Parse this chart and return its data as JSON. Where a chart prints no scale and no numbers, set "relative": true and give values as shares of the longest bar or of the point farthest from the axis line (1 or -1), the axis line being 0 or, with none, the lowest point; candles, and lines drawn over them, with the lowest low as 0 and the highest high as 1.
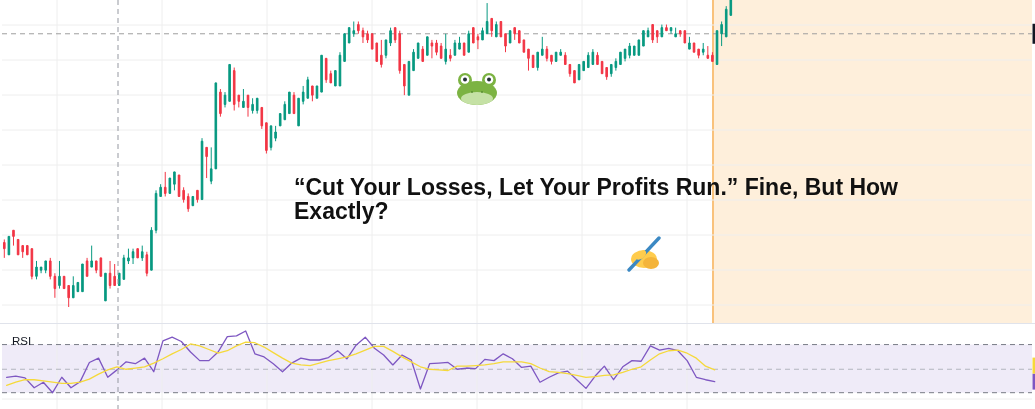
{
  "chart_data": [
    {
      "type": "candlestick",
      "title": "“Cut Your Losses, Let Your Profits Run.” Fine, But How Exactly?",
      "relative": true,
      "grid": true,
      "categories": [
        null,
        null,
        null,
        null,
        null,
        null,
        null,
        null,
        null,
        null,
        null,
        null,
        null,
        null,
        null,
        null,
        null,
        null,
        null,
        null,
        null,
        null,
        null,
        null,
        null,
        null,
        null,
        null,
        null,
        null,
        null,
        null,
        null,
        null,
        null,
        null,
        null,
        null,
        null,
        null,
        null,
        null,
        null,
        null,
        null,
        null,
        null,
        null,
        null,
        null,
        null,
        null,
        null,
        null,
        null,
        null,
        null,
        null,
        null,
        null,
        null,
        null,
        null,
        null,
        null,
        null,
        null,
        null,
        null,
        null,
        null,
        null,
        null,
        null,
        null,
        null,
        null,
        null,
        null,
        null,
        null,
        null,
        null,
        null,
        null,
        null,
        null,
        null,
        null,
        null,
        null,
        null,
        null,
        null,
        null,
        null,
        null,
        null,
        null,
        null,
        null,
        null,
        null,
        null,
        null,
        null,
        null,
        null,
        null,
        null,
        null,
        null,
        null,
        null,
        null,
        null,
        null,
        null,
        null,
        null,
        null,
        null,
        null,
        null,
        null,
        null,
        null,
        null,
        null,
        null,
        null,
        null,
        null,
        null,
        null,
        null,
        null,
        null,
        null,
        null,
        null,
        null,
        null,
        null,
        null,
        null,
        null,
        null,
        null,
        null,
        null,
        null,
        null,
        null,
        null,
        null,
        null,
        null,
        null,
        null,
        null,
        null,
        null,
        null,
        null,
        null,
        null,
        null,
        null,
        null,
        null,
        null,
        null,
        null,
        null,
        null,
        null,
        null,
        null,
        null,
        null,
        null,
        null,
        null,
        null,
        null,
        null,
        null,
        null,
        null,
        null,
        null,
        null,
        null,
        null,
        null,
        null,
        null,
        null,
        null,
        null,
        null,
        null,
        null,
        null,
        null,
        null,
        null,
        null,
        null,
        null,
        null,
        null,
        null,
        null,
        null,
        null,
        null,
        null,
        null,
        null,
        null,
        null,
        null
      ],
      "ohlc": [
        [
          0.21,
          0.22,
          0.16,
          0.19
        ],
        [
          0.17,
          0.23,
          0.17,
          0.23
        ],
        [
          0.25,
          0.25,
          0.2,
          0.23
        ],
        [
          0.22,
          0.22,
          0.17,
          0.17
        ],
        [
          0.2,
          0.2,
          0.16,
          0.18
        ],
        [
          0.2,
          0.2,
          0.17,
          0.17
        ],
        [
          0.19,
          0.19,
          0.09,
          0.1
        ],
        [
          0.1,
          0.15,
          0.09,
          0.13
        ],
        [
          0.12,
          0.13,
          0.11,
          0.13
        ],
        [
          0.12,
          0.15,
          0.11,
          0.15
        ],
        [
          0.15,
          0.16,
          0.09,
          0.1
        ],
        [
          0.1,
          0.11,
          0.03,
          0.06
        ],
        [
          0.07,
          0.15,
          0.06,
          0.1
        ],
        [
          0.1,
          0.1,
          0.06,
          0.06
        ],
        [
          0.07,
          0.07,
          0,
          0.03
        ],
        [
          0.03,
          0.1,
          0.03,
          0.07
        ],
        [
          0.05,
          0.08,
          0.05,
          0.08
        ],
        [
          0.05,
          0.14,
          0.05,
          0.14
        ],
        [
          0.15,
          0.16,
          0.1,
          0.1
        ],
        [
          0.13,
          0.2,
          0.13,
          0.15
        ],
        [
          0.15,
          0.15,
          0.11,
          0.12
        ],
        [
          0.16,
          0.16,
          0.1,
          0.1
        ],
        [
          0.02,
          0.11,
          0.02,
          0.11
        ],
        [
          0.11,
          0.15,
          0.06,
          0.07
        ],
        [
          0.1,
          0.14,
          0.07,
          0.07
        ],
        [
          0.07,
          0.11,
          0.07,
          0.11
        ],
        [
          0.09,
          0.17,
          0.09,
          0.16
        ],
        [
          0.15,
          0.19,
          0.14,
          0.16
        ],
        [
          0.16,
          0.19,
          0.14,
          0.18
        ],
        [
          0.19,
          0.19,
          0.16,
          0.16
        ],
        [
          0.16,
          0.2,
          0.15,
          0.18
        ],
        [
          0.17,
          0.18,
          0.1,
          0.11
        ],
        [
          0.12,
          0.26,
          0.12,
          0.25
        ],
        [
          0.25,
          0.38,
          0.24,
          0.37
        ],
        [
          0.36,
          0.4,
          0.36,
          0.39
        ],
        [
          0.39,
          0.44,
          0.36,
          0.37
        ],
        [
          0.37,
          0.42,
          0.37,
          0.42
        ],
        [
          0.4,
          0.44,
          0.38,
          0.44
        ],
        [
          0.43,
          0.43,
          0.36,
          0.36
        ],
        [
          0.38,
          0.39,
          0.34,
          0.35
        ],
        [
          0.36,
          0.37,
          0.31,
          0.32
        ],
        [
          0.33,
          0.36,
          0.33,
          0.36
        ],
        [
          0.38,
          0.38,
          0.34,
          0.35
        ],
        [
          0.35,
          0.55,
          0.35,
          0.54
        ],
        [
          0.52,
          0.52,
          0.42,
          0.49
        ],
        [
          0.41,
          0.52,
          0.4,
          0.45
        ],
        [
          0.45,
          0.73,
          0.45,
          0.73
        ],
        [
          0.7,
          0.71,
          0.62,
          0.63
        ],
        [
          0.66,
          0.7,
          0.65,
          0.69
        ],
        [
          0.67,
          0.79,
          0.67,
          0.79
        ],
        [
          0.77,
          0.78,
          0.64,
          0.66
        ],
        [
          0.69,
          0.69,
          0.65,
          0.67
        ],
        [
          0.65,
          0.71,
          0.65,
          0.67
        ],
        [
          0.69,
          0.69,
          0.62,
          0.65
        ],
        [
          0.64,
          0.68,
          0.63,
          0.66
        ],
        [
          0.64,
          0.68,
          0.63,
          0.68
        ],
        [
          0.65,
          0.65,
          0.58,
          0.59
        ],
        [
          0.6,
          0.6,
          0.5,
          0.51
        ],
        [
          0.52,
          0.59,
          0.51,
          0.59
        ],
        [
          0.55,
          0.59,
          0.54,
          0.57
        ],
        [
          0.59,
          0.63,
          0.59,
          0.63
        ],
        [
          0.61,
          0.67,
          0.61,
          0.66
        ],
        [
          0.63,
          0.7,
          0.63,
          0.7
        ],
        [
          0.69,
          0.7,
          0.63,
          0.63
        ],
        [
          0.59,
          0.68,
          0.59,
          0.68
        ],
        [
          0.67,
          0.72,
          0.66,
          0.7
        ],
        [
          0.68,
          0.75,
          0.68,
          0.74
        ],
        [
          0.72,
          0.72,
          0.67,
          0.69
        ],
        [
          0.68,
          0.72,
          0.68,
          0.72
        ],
        [
          0.7,
          0.82,
          0.7,
          0.82
        ],
        [
          0.81,
          0.81,
          0.73,
          0.74
        ],
        [
          0.76,
          0.77,
          0.73,
          0.73
        ],
        [
          0.72,
          0.77,
          0.72,
          0.77
        ],
        [
          0.72,
          0.83,
          0.72,
          0.82
        ],
        [
          0.8,
          0.89,
          0.8,
          0.89
        ],
        [
          0.86,
          0.91,
          0.86,
          0.91
        ],
        [
          0.89,
          0.93,
          0.88,
          0.9
        ],
        [
          0.92,
          0.93,
          0.89,
          0.9
        ],
        [
          0.9,
          0.91,
          0.86,
          0.88
        ],
        [
          0.89,
          0.9,
          0.86,
          0.87
        ],
        [
          0.89,
          0.89,
          0.84,
          0.84
        ],
        [
          0.86,
          0.86,
          0.8,
          0.8
        ],
        [
          0.82,
          0.87,
          0.78,
          0.79
        ],
        [
          0.82,
          0.87,
          0.81,
          0.87
        ],
        [
          0.86,
          0.91,
          0.85,
          0.9
        ],
        [
          0.91,
          0.91,
          0.86,
          0.87
        ],
        [
          0.89,
          0.9,
          0.76,
          0.77
        ],
        [
          0.79,
          0.79,
          0.69,
          0.72
        ],
        [
          0.69,
          0.8,
          0.69,
          0.8
        ],
        [
          0.77,
          0.84,
          0.77,
          0.83
        ],
        [
          0.81,
          0.86,
          0.81,
          0.86
        ],
        [
          0.84,
          0.85,
          0.8,
          0.8
        ],
        [
          0.82,
          0.88,
          0.82,
          0.88
        ],
        [
          0.86,
          0.87,
          0.81,
          0.85
        ],
        [
          0.86,
          0.87,
          0.82,
          0.83
        ],
        [
          0.85,
          0.86,
          0.81,
          0.81
        ],
        [
          0.8,
          0.89,
          0.79,
          0.84
        ],
        [
          0.82,
          0.84,
          0.8,
          0.81
        ],
        [
          0.82,
          0.87,
          0.82,
          0.86
        ],
        [
          0.84,
          0.88,
          0.84,
          0.86
        ],
        [
          0.86,
          0.86,
          0.82,
          0.82
        ],
        [
          0.83,
          0.9,
          0.83,
          0.89
        ],
        [
          0.91,
          0.91,
          0.86,
          0.86
        ],
        [
          0.88,
          0.89,
          0.84,
          0.87
        ],
        [
          0.87,
          0.91,
          0.87,
          0.9
        ],
        [
          0.89,
          0.99,
          0.89,
          0.93
        ],
        [
          0.94,
          0.94,
          0.88,
          0.9
        ],
        [
          0.88,
          0.93,
          0.88,
          0.92
        ],
        [
          0.93,
          0.93,
          0.88,
          0.88
        ],
        [
          0.89,
          0.89,
          0.83,
          0.85
        ],
        [
          0.86,
          0.9,
          0.86,
          0.9
        ],
        [
          0.91,
          0.91,
          0.87,
          0.89
        ],
        [
          0.9,
          0.9,
          0.86,
          0.86
        ],
        [
          0.87,
          0.87,
          0.83,
          0.83
        ],
        [
          0.84,
          0.84,
          0.77,
          0.81
        ],
        [
          0.82,
          0.82,
          0.78,
          0.78
        ],
        [
          0.78,
          0.83,
          0.77,
          0.83
        ],
        [
          0.82,
          0.88,
          0.82,
          0.84
        ],
        [
          0.84,
          0.85,
          0.8,
          0.81
        ],
        [
          0.82,
          0.82,
          0.79,
          0.8
        ],
        [
          0.8,
          0.83,
          0.8,
          0.83
        ],
        [
          0.82,
          0.84,
          0.82,
          0.83
        ],
        [
          0.82,
          0.83,
          0.79,
          0.79
        ],
        [
          0.79,
          0.79,
          0.75,
          0.76
        ],
        [
          0.77,
          0.77,
          0.73,
          0.73
        ],
        [
          0.74,
          0.79,
          0.74,
          0.79
        ],
        [
          0.77,
          0.8,
          0.77,
          0.8
        ],
        [
          0.78,
          0.83,
          0.78,
          0.82
        ],
        [
          0.79,
          0.84,
          0.79,
          0.83
        ],
        [
          0.82,
          0.83,
          0.79,
          0.79
        ],
        [
          0.8,
          0.8,
          0.76,
          0.76
        ],
        [
          0.78,
          0.78,
          0.74,
          0.75
        ],
        [
          0.76,
          0.79,
          0.75,
          0.79
        ],
        [
          0.78,
          0.81,
          0.77,
          0.8
        ],
        [
          0.79,
          0.83,
          0.79,
          0.83
        ],
        [
          0.81,
          0.84,
          0.8,
          0.84
        ],
        [
          0.82,
          0.86,
          0.81,
          0.85
        ],
        [
          0.82,
          0.85,
          0.82,
          0.85
        ],
        [
          0.82,
          0.87,
          0.82,
          0.87
        ],
        [
          0.85,
          0.9,
          0.85,
          0.9
        ],
        [
          0.88,
          0.91,
          0.88,
          0.9
        ],
        [
          0.92,
          0.92,
          0.86,
          0.87
        ],
        [
          0.9,
          0.9,
          0.86,
          0.88
        ],
        [
          0.88,
          0.92,
          0.88,
          0.91
        ],
        [
          0.91,
          0.92,
          0.9,
          0.9
        ],
        [
          0.9,
          0.91,
          0.89,
          0.91
        ],
        [
          0.88,
          0.91,
          0.88,
          0.89
        ],
        [
          0.9,
          0.9,
          0.88,
          0.89
        ],
        [
          0.9,
          0.9,
          0.86,
          0.86
        ],
        [
          0.84,
          0.88,
          0.84,
          0.86
        ],
        [
          0.86,
          0.86,
          0.83,
          0.83
        ],
        [
          0.84,
          0.84,
          0.81,
          0.82
        ],
        [
          0.83,
          0.86,
          0.82,
          0.84
        ],
        [
          0.82,
          0.85,
          0.81,
          0.81
        ],
        [
          0.82,
          0.83,
          0.8,
          0.8
        ],
        [
          0.79,
          0.9,
          0.79,
          0.9
        ],
        [
          0.89,
          0.93,
          0.85,
          0.92
        ],
        [
          0.88,
          0.98,
          0.88,
          0.97
        ],
        [
          0.95,
          1,
          0.95,
          1
        ],
        null,
        null,
        null,
        null,
        null,
        null,
        null,
        null,
        null,
        null,
        null,
        null,
        null,
        null,
        null,
        null,
        null,
        null,
        null,
        null,
        null,
        null,
        null,
        null,
        null,
        null,
        null,
        null,
        null,
        null,
        null,
        null,
        null,
        null,
        null,
        null,
        null,
        null,
        null,
        null,
        null,
        null,
        null,
        null,
        null,
        null,
        null,
        null,
        null,
        null,
        null,
        null,
        null,
        null,
        null,
        null,
        null,
        null,
        null,
        null,
        null,
        null,
        null,
        null,
        null
      ],
      "colors": [
        "#f23645",
        "#089981",
        "#f23645",
        "#f23645",
        "#f23645",
        "#f23645",
        "#f23645",
        "#089981",
        "#089981",
        "#089981",
        "#f23645",
        "#f23645",
        "#089981",
        "#f23645",
        "#f23645",
        "#089981",
        "#089981",
        "#089981",
        "#f23645",
        "#089981",
        "#f23645",
        "#f23645",
        "#089981",
        "#f23645",
        "#f23645",
        "#089981",
        "#089981",
        "#089981",
        "#089981",
        "#f23645",
        "#089981",
        "#f23645",
        "#089981",
        "#089981",
        "#089981",
        "#f23645",
        "#089981",
        "#089981",
        "#f23645",
        "#f23645",
        "#f23645",
        "#089981",
        "#f23645",
        "#089981",
        "#f23645",
        "#089981",
        "#089981",
        "#f23645",
        "#089981",
        "#089981",
        "#f23645",
        "#f23645",
        "#089981",
        "#f23645",
        "#089981",
        "#089981",
        "#f23645",
        "#f23645",
        "#089981",
        "#089981",
        "#089981",
        "#089981",
        "#089981",
        "#f23645",
        "#089981",
        "#089981",
        "#089981",
        "#f23645",
        "#089981",
        "#089981",
        "#f23645",
        "#f23645",
        "#089981",
        "#089981",
        "#089981",
        "#089981",
        "#089981",
        "#f23645",
        "#f23645",
        "#f23645",
        "#f23645",
        "#f23645",
        "#f23645",
        "#089981",
        "#089981",
        "#f23645",
        "#f23645",
        "#f23645",
        "#089981",
        "#089981",
        "#089981",
        "#f23645",
        "#089981",
        "#f23645",
        "#f23645",
        "#f23645",
        "#089981",
        "#f23645",
        "#089981",
        "#089981",
        "#f23645",
        "#089981",
        "#f23645",
        "#f23645",
        "#089981",
        "#089981",
        "#f23645",
        "#089981",
        "#f23645",
        "#f23645",
        "#089981",
        "#f23645",
        "#f23645",
        "#f23645",
        "#f23645",
        "#f23645",
        "#089981",
        "#089981",
        "#f23645",
        "#f23645",
        "#089981",
        "#089981",
        "#f23645",
        "#f23645",
        "#f23645",
        "#089981",
        "#089981",
        "#089981",
        "#089981",
        "#f23645",
        "#f23645",
        "#f23645",
        "#089981",
        "#089981",
        "#089981",
        "#089981",
        "#089981",
        "#089981",
        "#089981",
        "#089981",
        "#089981",
        "#f23645",
        "#f23645",
        "#089981",
        "#f23645",
        "#089981",
        "#089981",
        "#f23645",
        "#f23645",
        "#089981",
        "#f23645",
        "#f23645",
        "#089981",
        "#f23645",
        "#f23645",
        "#089981",
        "#089981",
        "#089981",
        "#089981",
        null,
        null,
        null,
        null,
        null,
        null,
        null,
        null,
        null,
        null,
        null,
        null,
        null,
        null,
        null,
        null,
        null,
        null,
        null,
        null,
        null,
        null,
        null,
        null,
        null,
        null,
        null,
        null,
        null,
        null,
        null,
        null,
        null,
        null,
        null,
        null,
        null,
        null,
        null,
        null,
        null,
        null,
        null,
        null,
        null,
        null,
        null,
        null,
        null,
        null,
        null,
        null,
        null,
        null,
        null,
        null,
        null,
        null,
        null,
        null,
        null,
        null,
        null,
        null,
        null
      ],
      "ref_lines": [
        {
          "axis": "y",
          "value": 0.89,
          "color": "#9e9e9e",
          "line_style": "dashed"
        }
      ]
    },
    {
      "type": "line",
      "title": "RSI",
      "relative": true,
      "grid": true,
      "categories": [
        null,
        null,
        null,
        null,
        null,
        null,
        null,
        null,
        null,
        null,
        null,
        null,
        null,
        null,
        null,
        null,
        null,
        null,
        null,
        null,
        null,
        null,
        null,
        null,
        null,
        null,
        null,
        null,
        null,
        null,
        null,
        null,
        null,
        null,
        null,
        null,
        null,
        null,
        null,
        null,
        null,
        null,
        null,
        null,
        null,
        null,
        null,
        null,
        null,
        null,
        null,
        null,
        null,
        null,
        null,
        null,
        null,
        null,
        null,
        null,
        null,
        null,
        null,
        null,
        null,
        null,
        null,
        null,
        null,
        null,
        null,
        null,
        null,
        null,
        null,
        null,
        null,
        null,
        null,
        null,
        null,
        null,
        null,
        null,
        null,
        null,
        null,
        null,
        null,
        null,
        null,
        null,
        null,
        null,
        null,
        null,
        null,
        null,
        null,
        null,
        null,
        null,
        null,
        null,
        null,
        null,
        null,
        null,
        null,
        null,
        null,
        null
      ],
      "series": [
        {
          "color": "#7e57c2",
          "values": [
            0.25,
            0.27,
            0.24,
            0.08,
            0.17,
            0,
            0.25,
            0.08,
            0.18,
            0.49,
            0.56,
            0.25,
            0.37,
            0.5,
            0.47,
            0.56,
            0.34,
            0.84,
            0.9,
            0.83,
            0.66,
            0.52,
            0.52,
            0.66,
            0.91,
            0.92,
            1,
            0.63,
            0.58,
            0.47,
            0.34,
            0.48,
            0.56,
            0.53,
            0.53,
            0.57,
            0.68,
            0.55,
            0.77,
            0.9,
            0.72,
            0.61,
            0.45,
            0.61,
            0.53,
            0.06,
            0.47,
            0.48,
            0.49,
            0.38,
            0.4,
            0.39,
            0.54,
            0.52,
            0.63,
            0.55,
            0.41,
            0.43,
            0.17,
            0.25,
            0.32,
            0.35,
            0.21,
            0.07,
            0.27,
            0.43,
            0.21,
            0.42,
            0.52,
            0.51,
            0.76,
            0.69,
            0.72,
            0.68,
            0.52,
            0.25,
            0.21,
            0.18,
            null,
            null,
            null,
            null,
            null,
            null,
            null,
            null,
            null,
            null,
            null,
            null,
            null,
            null,
            null,
            null,
            null,
            null,
            null,
            null,
            null,
            null,
            null,
            null,
            null,
            null,
            null,
            null,
            null,
            null,
            null,
            null,
            null,
            null
          ]
        },
        {
          "color": "#f5d93a",
          "values": [
            0.12,
            0.17,
            0.21,
            0.21,
            0.19,
            0.17,
            0.15,
            0.15,
            0.17,
            0.22,
            0.3,
            0.37,
            0.42,
            0.38,
            0.4,
            0.42,
            0.48,
            0.55,
            0.63,
            0.7,
            0.79,
            0.76,
            0.7,
            0.64,
            0.68,
            0.76,
            0.82,
            0.81,
            0.74,
            0.65,
            0.56,
            0.48,
            0.45,
            0.44,
            0.48,
            0.52,
            0.55,
            0.58,
            0.63,
            0.69,
            0.75,
            0.75,
            0.67,
            0.58,
            0.5,
            0.42,
            0.38,
            0.37,
            0.36,
            0.43,
            0.43,
            0.44,
            0.45,
            0.47,
            0.5,
            0.5,
            0.5,
            0.47,
            0.4,
            0.34,
            0.33,
            0.31,
            0.28,
            0.25,
            0.26,
            0.28,
            0.29,
            0.33,
            0.38,
            0.42,
            0.53,
            0.63,
            0.68,
            0.69,
            0.64,
            0.56,
            0.43,
            0.37,
            null,
            null,
            null,
            null,
            null,
            null,
            null,
            null,
            null,
            null,
            null,
            null,
            null,
            null,
            null,
            null,
            null,
            null,
            null,
            null,
            null,
            null,
            null,
            null,
            null,
            null,
            null,
            null,
            null,
            null,
            null,
            null,
            null,
            null
          ]
        }
      ],
      "ref_lines": [
        {
          "axis": "y",
          "value": 0.78,
          "color": "#787b86",
          "line_style": "dashed"
        },
        {
          "axis": "y",
          "value": 0.38,
          "color": "#b2b5be",
          "line_style": "dashed"
        },
        {
          "axis": "y",
          "value": 0,
          "color": "#787b86",
          "line_style": "dashed"
        }
      ],
      "bands": [
        {
          "axis": "y",
          "from": 0,
          "to": 0.78,
          "color": "#efebf8"
        }
      ]
    }
  ]
}
